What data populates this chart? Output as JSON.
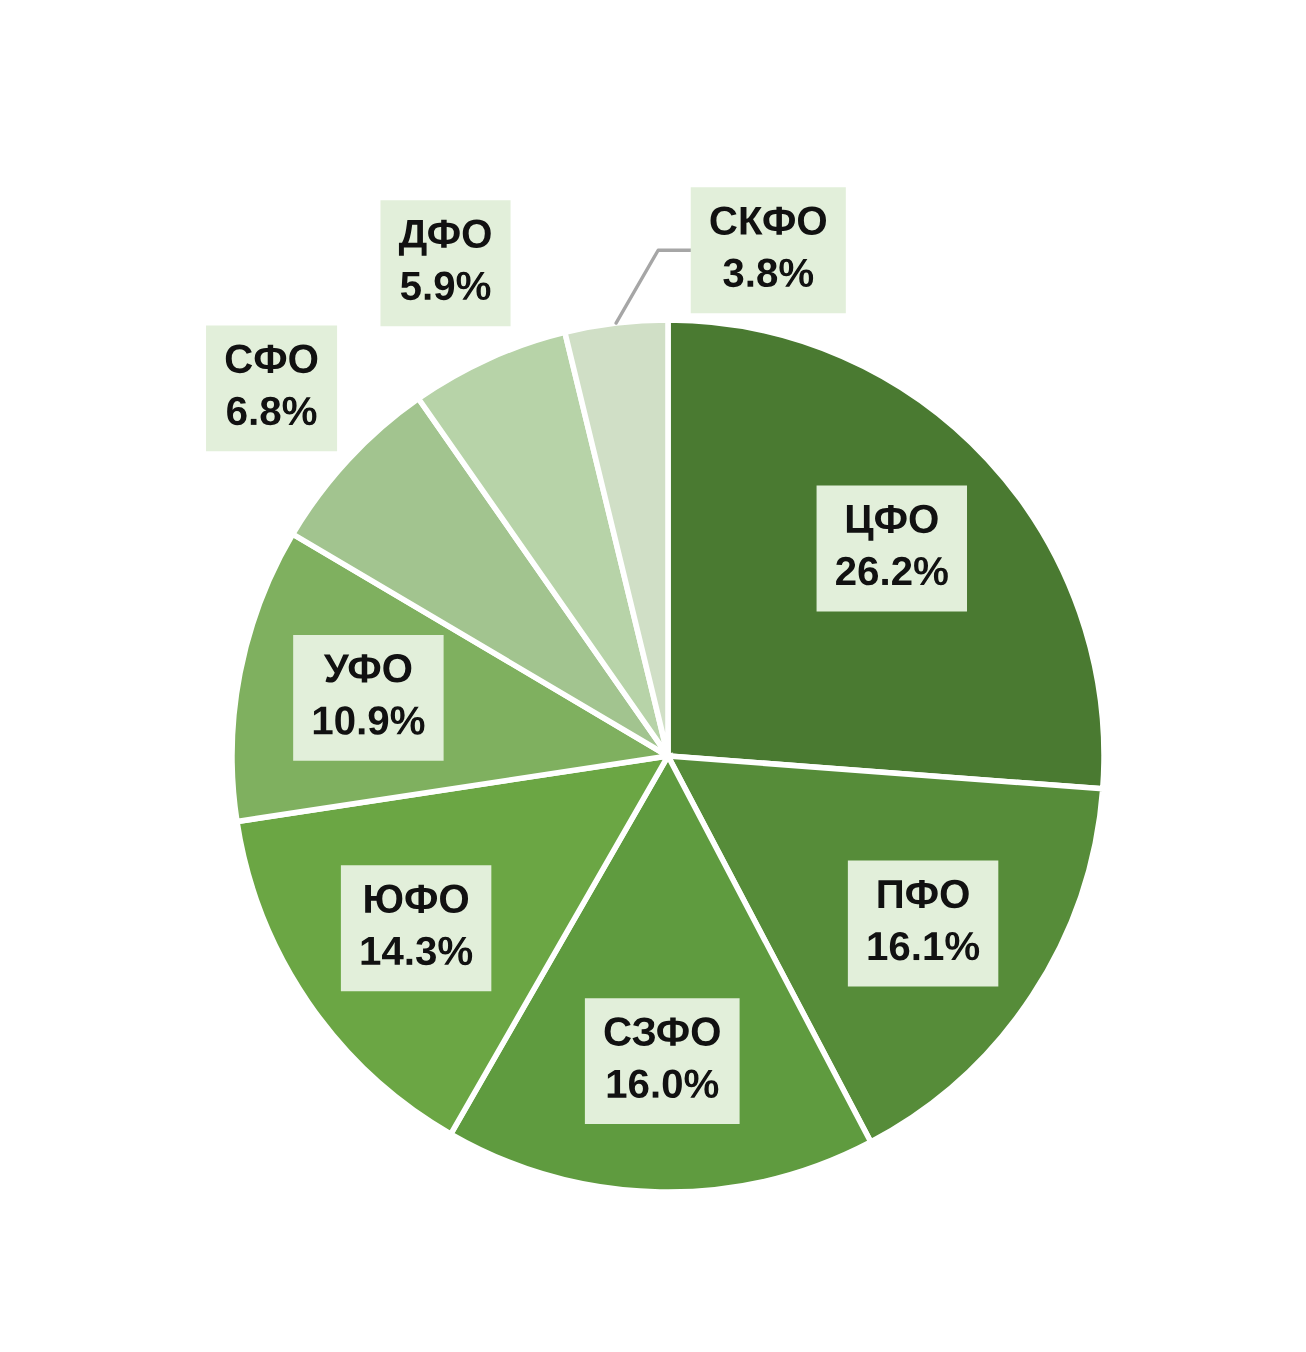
{
  "chart_data": {
    "type": "pie",
    "categories": [
      "ЦФО",
      "ПФО",
      "СЗФО",
      "ЮФО",
      "УФО",
      "СФО",
      "ДФО",
      "СКФО"
    ],
    "values": [
      26.2,
      16.1,
      16.0,
      14.3,
      10.9,
      6.8,
      5.9,
      3.8
    ],
    "value_labels": [
      "26.2%",
      "16.1%",
      "16.0%",
      "14.3%",
      "10.9%",
      "6.8%",
      "5.9%",
      "3.8%"
    ],
    "colors": [
      "#4a7a31",
      "#568c39",
      "#5f9b3f",
      "#6ba644",
      "#7fb05f",
      "#a2c48f",
      "#b7d3a8",
      "#d0dfc6"
    ]
  }
}
